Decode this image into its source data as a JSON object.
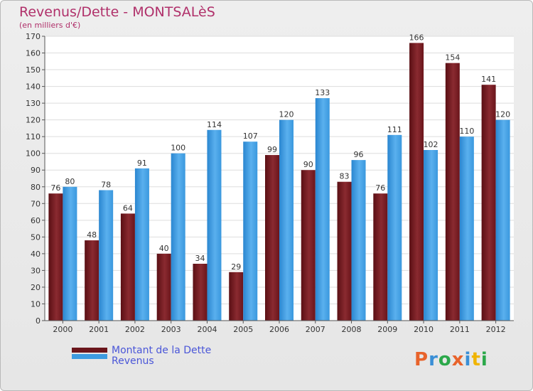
{
  "header": {
    "title": "Revenus/Dette - MONTSALèS",
    "subtitle": "(en milliers d'€)"
  },
  "legend": {
    "items": [
      {
        "label": "Montant de la Dette",
        "color": "#7a1c22"
      },
      {
        "label": "Revenus",
        "color": "#3d9be0"
      }
    ]
  },
  "logo": {
    "text": "Proxiti",
    "letters": [
      {
        "char": "P",
        "color": "#e8632b"
      },
      {
        "char": "r",
        "color": "#3a8fd6"
      },
      {
        "char": "o",
        "color": "#2ba84a"
      },
      {
        "char": "x",
        "color": "#e8632b"
      },
      {
        "char": "i",
        "color": "#3a8fd6"
      },
      {
        "char": "t",
        "color": "#f0b400"
      },
      {
        "char": "i",
        "color": "#2ba84a"
      }
    ]
  },
  "chart_data": {
    "type": "bar",
    "title": "Revenus/Dette - MONTSALèS",
    "subtitle": "(en milliers d'€)",
    "categories": [
      "2000",
      "2001",
      "2002",
      "2003",
      "2004",
      "2005",
      "2006",
      "2007",
      "2008",
      "2009",
      "2010",
      "2011",
      "2012"
    ],
    "series": [
      {
        "name": "Montant de la Dette",
        "color": "#7a1c22",
        "values": [
          76,
          48,
          64,
          40,
          34,
          29,
          99,
          90,
          83,
          76,
          166,
          154,
          141
        ]
      },
      {
        "name": "Revenus",
        "color": "#3d9be0",
        "values": [
          80,
          78,
          91,
          100,
          114,
          107,
          120,
          133,
          96,
          111,
          102,
          110,
          120
        ]
      }
    ],
    "ylim": [
      0,
      170
    ],
    "yticks": [
      0,
      10,
      20,
      30,
      40,
      50,
      60,
      70,
      80,
      90,
      100,
      110,
      120,
      130,
      140,
      150,
      160,
      170
    ],
    "grid": true,
    "legend_position": "bottom-left",
    "xlabel": "",
    "ylabel": ""
  }
}
